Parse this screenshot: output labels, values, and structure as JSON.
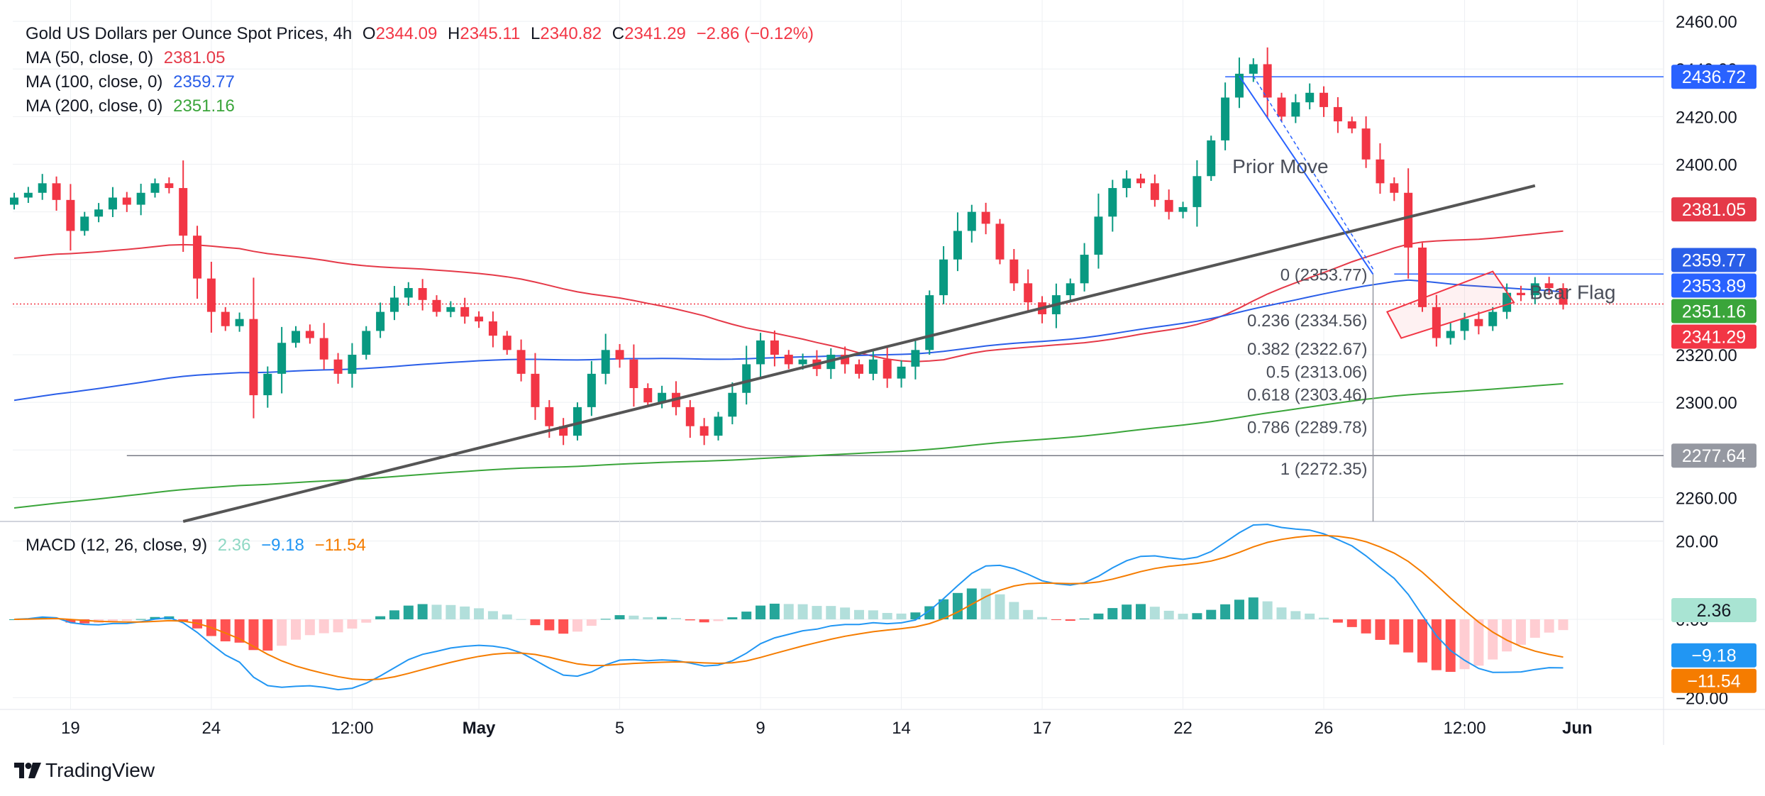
{
  "header": {
    "symbol": "Gold US Dollars per Ounce Spot Prices, 4h",
    "open_label": "O",
    "open": "2344.09",
    "high_label": "H",
    "high": "2345.11",
    "low_label": "L",
    "low": "2340.82",
    "close_label": "C",
    "close": "2341.29",
    "change": "−2.86 (−0.12%)"
  },
  "ma_legend": [
    {
      "label": "MA (50, close, 0)",
      "value": "2381.05",
      "color": "#e53948"
    },
    {
      "label": "MA (100, close, 0)",
      "value": "2359.77",
      "color": "#2a5ee8"
    },
    {
      "label": "MA (200, close, 0)",
      "value": "2351.16",
      "color": "#3aa53a"
    }
  ],
  "macd_legend": {
    "label": "MACD (12, 26, close, 9)",
    "hist": "2.36",
    "macd": "−9.18",
    "signal": "−11.54",
    "hist_color": "#8fd8c4",
    "macd_color": "#2196f3",
    "signal_color": "#f57c00"
  },
  "brand": "TradingView",
  "colors": {
    "up": "#089981",
    "down": "#f23645",
    "grid": "#eef0f3",
    "text": "#131722"
  },
  "chart_data": [
    {
      "type": "candlestick",
      "title": "Gold US Dollars per Ounce Spot Prices, 4h",
      "ylim": [
        2250,
        2463
      ],
      "y_ticks": [
        2260,
        2280,
        2300,
        2320,
        2340,
        2360,
        2380,
        2400,
        2420,
        2440,
        2460
      ],
      "y_tick_labels": [
        "2260.00",
        "2280.00",
        "2300.00",
        "2320.00",
        "2340.00",
        "2360.00",
        "2380.00",
        "2400.00",
        "2420.00",
        "2440.00",
        "2460.00"
      ],
      "x_tick_labels": [
        {
          "label": "19",
          "bar": 4
        },
        {
          "label": "24",
          "bar": 14
        },
        {
          "label": "12:00",
          "bar": 24
        },
        {
          "label": "May",
          "bar": 33,
          "bold": true
        },
        {
          "label": "5",
          "bar": 43
        },
        {
          "label": "9",
          "bar": 53
        },
        {
          "label": "14",
          "bar": 63
        },
        {
          "label": "17",
          "bar": 73
        },
        {
          "label": "22",
          "bar": 83
        },
        {
          "label": "26",
          "bar": 93
        },
        {
          "label": "12:00",
          "bar": 103
        },
        {
          "label": "Jun",
          "bar": 111,
          "bold": true
        }
      ],
      "closes": [
        2386,
        2388,
        2392,
        2385,
        2372,
        2378,
        2381,
        2386,
        2383,
        2388,
        2392,
        2390,
        2370,
        2352,
        2338,
        2332,
        2335,
        2303,
        2312,
        2325,
        2330,
        2327,
        2318,
        2312,
        2320,
        2330,
        2338,
        2344,
        2348,
        2343,
        2338,
        2340,
        2336,
        2334,
        2328,
        2322,
        2312,
        2298,
        2290,
        2286,
        2298,
        2312,
        2322,
        2318,
        2306,
        2300,
        2304,
        2298,
        2290,
        2286,
        2294,
        2304,
        2316,
        2326,
        2320,
        2316,
        2318,
        2314,
        2320,
        2316,
        2312,
        2318,
        2310,
        2315,
        2322,
        2345,
        2360,
        2372,
        2380,
        2375,
        2360,
        2350,
        2342,
        2337,
        2345,
        2350,
        2362,
        2378,
        2390,
        2394,
        2392,
        2385,
        2380,
        2382,
        2395,
        2410,
        2428,
        2438,
        2442,
        2428,
        2420,
        2426,
        2430,
        2424,
        2418,
        2415,
        2402,
        2392,
        2388,
        2365,
        2340,
        2327,
        2330,
        2335,
        2332,
        2338,
        2346,
        2345,
        2350,
        2348,
        2341
      ],
      "series": [
        {
          "name": "MA (50, close, 0)",
          "value": 2381.05,
          "color": "#e53948"
        },
        {
          "name": "MA (100, close, 0)",
          "value": 2359.77,
          "color": "#2a5ee8"
        },
        {
          "name": "MA (200, close, 0)",
          "value": 2351.16,
          "color": "#3aa53a"
        }
      ],
      "annotations": [
        {
          "text": "Prior Move"
        },
        {
          "text": "Bear Flag"
        }
      ],
      "fib_levels": [
        {
          "label": "0 (2353.77)",
          "value": 2353.77
        },
        {
          "label": "0.236 (2334.56)",
          "value": 2334.56
        },
        {
          "label": "0.382 (2322.67)",
          "value": 2322.67
        },
        {
          "label": "0.5 (2313.06)",
          "value": 2313.06
        },
        {
          "label": "0.618 (2303.46)",
          "value": 2303.46
        },
        {
          "label": "0.786 (2289.78)",
          "value": 2289.78
        },
        {
          "label": "1 (2272.35)",
          "value": 2272.35
        }
      ],
      "price_tags": [
        {
          "value": 2436.72,
          "text": "2436.72",
          "bg": "#2962ff",
          "fg": "#ffffff"
        },
        {
          "value": 2381.05,
          "text": "2381.05",
          "bg": "#e53948",
          "fg": "#ffffff"
        },
        {
          "value": 2359.77,
          "text": "2359.77",
          "bg": "#2a5ee8",
          "fg": "#ffffff"
        },
        {
          "value": 2353.89,
          "text": "2353.89",
          "bg": "#2962ff",
          "fg": "#ffffff"
        },
        {
          "value": 2351.16,
          "text": "2351.16",
          "bg": "#3aa53a",
          "fg": "#ffffff"
        },
        {
          "value": 2341.29,
          "text": "2341.29",
          "bg": "#f23645",
          "fg": "#ffffff"
        },
        {
          "value": 2277.64,
          "text": "2277.64",
          "bg": "#9598a1",
          "fg": "#ffffff"
        }
      ],
      "horizontal_lines": [
        {
          "value": 2436.72,
          "color": "#2962ff"
        },
        {
          "value": 2353.89,
          "color": "#2962ff"
        },
        {
          "value": 2341.29,
          "color": "#f23645",
          "dotted": true
        },
        {
          "value": 2277.64,
          "color": "#787b86"
        }
      ]
    },
    {
      "type": "macd",
      "title": "MACD (12, 26, close, 9)",
      "ylim": [
        -23,
        23
      ],
      "y_ticks": [
        20,
        0,
        -20
      ],
      "y_tick_labels": [
        "20.00",
        "0.00",
        "−20.00"
      ],
      "series": [
        {
          "name": "histogram",
          "last": 2.36
        },
        {
          "name": "MACD",
          "last": -9.18,
          "color": "#2196f3"
        },
        {
          "name": "signal",
          "last": -11.54,
          "color": "#f57c00"
        }
      ],
      "price_tags": [
        {
          "value": 2.36,
          "text": "2.36",
          "bg": "#a9e4d3",
          "fg": "#131722"
        },
        {
          "value": -9.18,
          "text": "−9.18",
          "bg": "#2196f3",
          "fg": "#ffffff"
        },
        {
          "value": -11.54,
          "text": "−11.54",
          "bg": "#f57c00",
          "fg": "#ffffff"
        }
      ]
    }
  ]
}
